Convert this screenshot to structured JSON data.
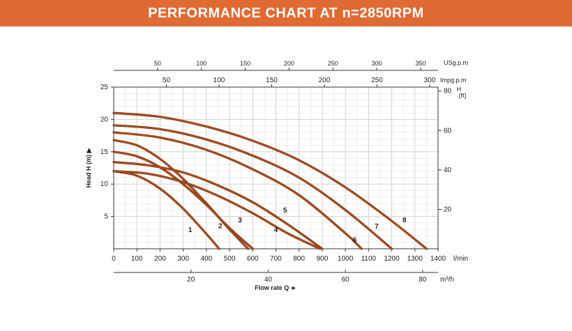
{
  "header": {
    "title": "PERFORMANCE CHART AT n=2850RPM"
  },
  "colors": {
    "banner": "#e06a33",
    "curve": "#b5531f",
    "grid": "#c9c9c9"
  },
  "chart_data": {
    "type": "line",
    "title": "PERFORMANCE CHART AT n=2850RPM",
    "x": {
      "unit": "l/min",
      "range": [
        0,
        1400
      ],
      "ticks": [
        0,
        100,
        200,
        300,
        400,
        500,
        600,
        700,
        800,
        900,
        1000,
        1100,
        1200,
        1300,
        1400
      ],
      "label": "Flow rate Q",
      "unit_label": "l/min"
    },
    "x_m3h": {
      "unit": "m³/h",
      "ticks": [
        20,
        40,
        60,
        80
      ]
    },
    "x_usgpm": {
      "unit": "USg.p.m",
      "ticks": [
        50,
        100,
        150,
        200,
        250,
        300,
        350
      ]
    },
    "x_impgpm": {
      "unit": "Impg.p.m",
      "ticks": [
        50,
        100,
        150,
        200,
        250,
        300
      ]
    },
    "y": {
      "label": "Head H (m)",
      "range": [
        0,
        25
      ],
      "ticks": [
        5,
        10,
        15,
        20,
        25
      ]
    },
    "y_ft": {
      "label": "H\n(ft)",
      "ticks": [
        20,
        40,
        60,
        80
      ]
    },
    "series": [
      {
        "name": "1",
        "x": [
          0,
          100,
          200,
          300,
          400,
          455
        ],
        "y": [
          12.0,
          11.3,
          9.3,
          6.2,
          2.3,
          0
        ]
      },
      {
        "name": "2",
        "x": [
          0,
          100,
          200,
          300,
          400,
          500,
          580
        ],
        "y": [
          16.8,
          16.0,
          13.9,
          10.8,
          7.0,
          3.0,
          0
        ]
      },
      {
        "name": "3",
        "x": [
          0,
          100,
          200,
          300,
          400,
          500,
          600
        ],
        "y": [
          15.0,
          14.3,
          12.6,
          10.0,
          6.8,
          3.2,
          0
        ]
      },
      {
        "name": "4",
        "x": [
          0,
          150,
          300,
          450,
          600,
          750,
          890
        ],
        "y": [
          12.0,
          11.6,
          10.3,
          8.2,
          5.5,
          2.4,
          0
        ]
      },
      {
        "name": "5",
        "x": [
          0,
          150,
          300,
          450,
          600,
          750,
          900
        ],
        "y": [
          13.4,
          12.9,
          11.8,
          9.8,
          7.2,
          3.8,
          0
        ]
      },
      {
        "name": "6",
        "x": [
          0,
          200,
          400,
          600,
          800,
          1000,
          1070
        ],
        "y": [
          18.0,
          17.2,
          15.3,
          12.3,
          8.3,
          2.4,
          0
        ]
      },
      {
        "name": "7",
        "x": [
          0,
          200,
          400,
          600,
          800,
          1000,
          1200
        ],
        "y": [
          19.1,
          18.5,
          16.9,
          14.4,
          11.0,
          6.0,
          0
        ]
      },
      {
        "name": "8",
        "x": [
          0,
          200,
          400,
          600,
          800,
          1000,
          1200,
          1350
        ],
        "y": [
          21.0,
          20.4,
          18.9,
          16.7,
          13.7,
          9.5,
          4.3,
          0
        ]
      }
    ]
  }
}
